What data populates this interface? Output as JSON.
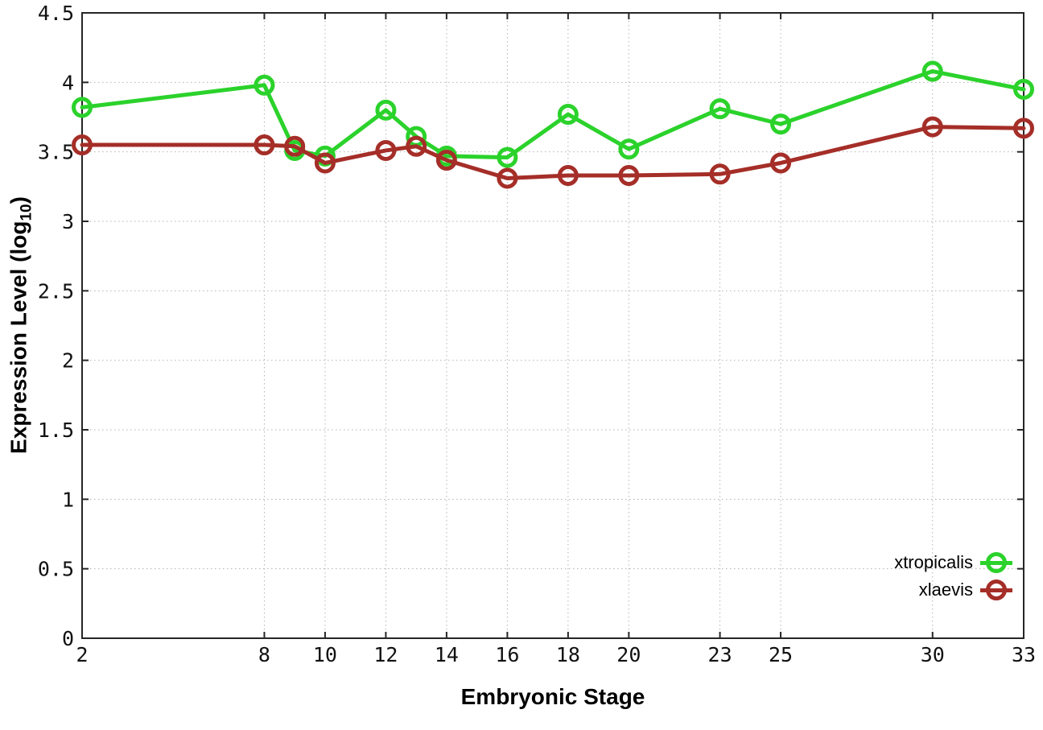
{
  "figure": {
    "background": "#ffffff",
    "border_color": "#262626",
    "grid_color": "#b3b3b3",
    "tick_label_color": "#111111"
  },
  "chart_data": {
    "type": "line",
    "title": "",
    "xlabel": "Embryonic Stage",
    "ylabel": "Expression Level (log10)",
    "ylabel_parts": {
      "pre": "Expression Level (log",
      "sub": "10",
      "post": ")"
    },
    "xlim": [
      2,
      33
    ],
    "ylim": [
      0,
      4.5
    ],
    "x_tick_values": [
      2,
      8,
      10,
      12,
      14,
      16,
      18,
      20,
      23,
      25,
      30,
      33
    ],
    "x_tick_labels": [
      "2",
      "8",
      "10",
      "12",
      "14",
      "16",
      "18",
      "20",
      "23",
      "25",
      "30",
      "33"
    ],
    "y_tick_values": [
      0,
      0.5,
      1,
      1.5,
      2,
      2.5,
      3,
      3.5,
      4,
      4.5
    ],
    "y_tick_labels": [
      "0",
      "0.5",
      "1",
      "1.5",
      "2",
      "2.5",
      "3",
      "3.5",
      "4",
      "4.5"
    ],
    "grid": true,
    "grid_style": "dotted",
    "legend_position": "inside-bottom-right",
    "x": [
      2,
      8,
      9,
      10,
      12,
      13,
      14,
      16,
      18,
      20,
      23,
      25,
      30,
      33
    ],
    "series": [
      {
        "name": "xtropicalis",
        "color": "#2bd22b",
        "marker": "open-circle",
        "values": [
          3.82,
          3.98,
          3.51,
          3.47,
          3.8,
          3.61,
          3.47,
          3.46,
          3.77,
          3.52,
          3.81,
          3.7,
          4.08,
          3.95
        ]
      },
      {
        "name": "xlaevis",
        "color": "#a52e28",
        "marker": "open-circle",
        "values": [
          3.55,
          3.55,
          3.54,
          3.42,
          3.51,
          3.54,
          3.44,
          3.31,
          3.33,
          3.33,
          3.34,
          3.42,
          3.68,
          3.67
        ]
      }
    ]
  }
}
